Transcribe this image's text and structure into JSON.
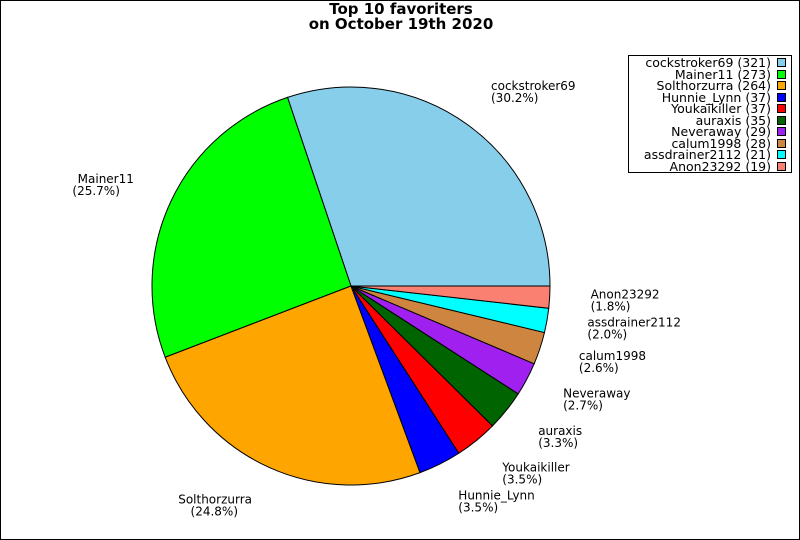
{
  "chart_data": {
    "type": "pie",
    "title": "Top 10 favoriters",
    "subtitle": "on October 19th 2020",
    "slices": [
      {
        "name": "cockstroker69",
        "value": 321,
        "percent_label": "(30.2%)",
        "legend": "cockstroker69 (321)",
        "color": "#87ceeb"
      },
      {
        "name": "Mainer11",
        "value": 273,
        "percent_label": "(25.7%)",
        "legend": "Mainer11 (273)",
        "color": "#00ff00"
      },
      {
        "name": "Solthorzurra",
        "value": 264,
        "percent_label": "(24.8%)",
        "legend": "Solthorzurra (264)",
        "color": "#ffa500"
      },
      {
        "name": "Hunnie_Lynn",
        "value": 37,
        "percent_label": "(3.5%)",
        "legend": "Hunnie_Lynn (37)",
        "color": "#0000ff"
      },
      {
        "name": "Youkaikiller",
        "value": 37,
        "percent_label": "(3.5%)",
        "legend": "Youkaikiller (37)",
        "color": "#ff0000"
      },
      {
        "name": "auraxis",
        "value": 35,
        "percent_label": "(3.3%)",
        "legend": "auraxis (35)",
        "color": "#006400"
      },
      {
        "name": "Neveraway",
        "value": 29,
        "percent_label": "(2.7%)",
        "legend": "Neveraway (29)",
        "color": "#a020f0"
      },
      {
        "name": "calum1998",
        "value": 28,
        "percent_label": "(2.6%)",
        "legend": "calum1998 (28)",
        "color": "#cd853f"
      },
      {
        "name": "assdrainer2112",
        "value": 21,
        "percent_label": "(2.0%)",
        "legend": "assdrainer2112 (21)",
        "color": "#00ffff"
      },
      {
        "name": "Anon23292",
        "value": 19,
        "percent_label": "(1.8%)",
        "legend": "Anon23292 (19)",
        "color": "#fa8072"
      }
    ],
    "legend_position": "top-right"
  }
}
